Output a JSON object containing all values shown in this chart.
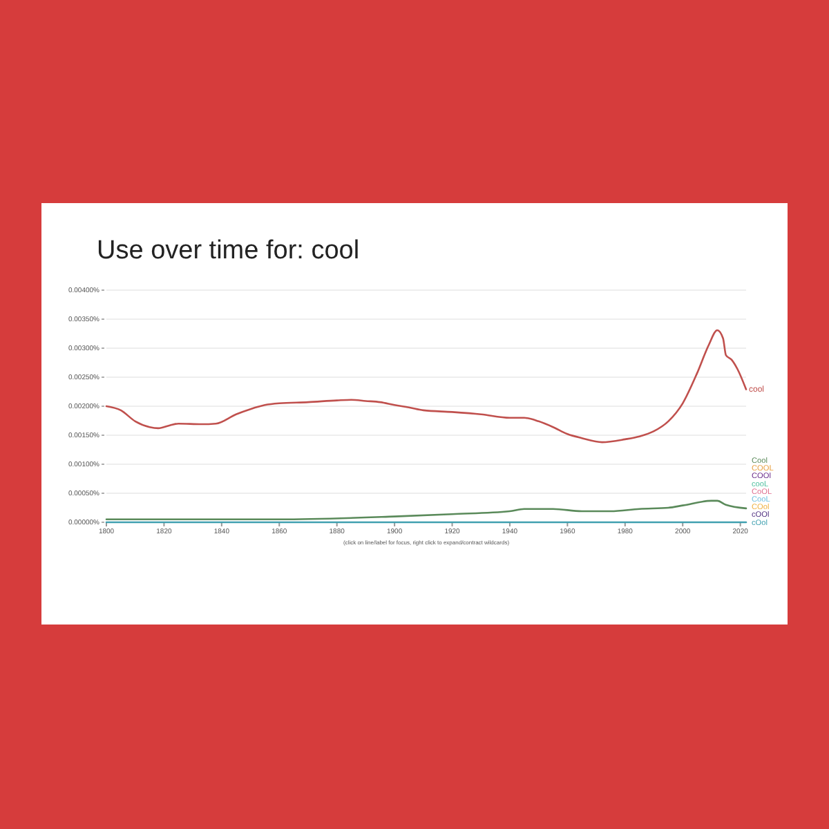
{
  "chart_data": {
    "type": "line",
    "title": "Use over time for: cool",
    "xlim": [
      1800,
      2022
    ],
    "xticks": [
      1800,
      1820,
      1840,
      1860,
      1880,
      1900,
      1920,
      1940,
      1960,
      1980,
      2000,
      2020
    ],
    "ylim": [
      0,
      0.004
    ],
    "yticks": [
      {
        "value": 0,
        "label": "0.00000%"
      },
      {
        "value": 0.0005,
        "label": "0.00050%"
      },
      {
        "value": 0.001,
        "label": "0.00100%"
      },
      {
        "value": 0.0015,
        "label": "0.00150%"
      },
      {
        "value": 0.002,
        "label": "0.00200%"
      },
      {
        "value": 0.0025,
        "label": "0.00250%"
      },
      {
        "value": 0.003,
        "label": "0.00300%"
      },
      {
        "value": 0.0035,
        "label": "0.00350%"
      },
      {
        "value": 0.004,
        "label": "0.00400%"
      }
    ],
    "grid": "y",
    "annotations": [
      "(click on line/label for focus, right click to expand/contract wildcards)"
    ],
    "series": [
      {
        "name": "cool",
        "color": "#c0504d",
        "x": [
          1800,
          1805,
          1810,
          1815,
          1818,
          1822,
          1825,
          1833,
          1838,
          1845,
          1850,
          1855,
          1860,
          1870,
          1880,
          1885,
          1890,
          1895,
          1900,
          1905,
          1910,
          1920,
          1930,
          1940,
          1945,
          1950,
          1955,
          1960,
          1965,
          1972,
          1980,
          1985,
          1990,
          1995,
          2000,
          2005,
          2009,
          2012,
          2014,
          2015,
          2017,
          2019,
          2022
        ],
        "values": [
          0.002,
          0.00193,
          0.00174,
          0.00164,
          0.00162,
          0.00167,
          0.0017,
          0.00169,
          0.0017,
          0.00186,
          0.00195,
          0.00202,
          0.00205,
          0.00207,
          0.0021,
          0.00211,
          0.00209,
          0.00207,
          0.00202,
          0.00198,
          0.00193,
          0.0019,
          0.00186,
          0.0018,
          0.0018,
          0.00174,
          0.00164,
          0.00152,
          0.00145,
          0.00138,
          0.00143,
          0.00148,
          0.00157,
          0.00174,
          0.00205,
          0.00257,
          0.00305,
          0.00331,
          0.00317,
          0.00288,
          0.0028,
          0.00264,
          0.00229
        ]
      },
      {
        "name": "Cool",
        "color": "#5a8a5a",
        "x": [
          1800,
          1820,
          1860,
          1900,
          1920,
          1940,
          1945,
          1955,
          1965,
          1975,
          1985,
          1995,
          2000,
          2010,
          2012,
          2015,
          2022
        ],
        "values": [
          5e-05,
          5e-05,
          5e-05,
          0.0001,
          0.00014,
          0.00019,
          0.00023,
          0.00023,
          0.00019,
          0.00019,
          0.00023,
          0.00025,
          0.00029,
          0.00037,
          0.00037,
          0.0003,
          0.00024
        ]
      },
      {
        "name": "COOL",
        "color": "#e8a040"
      },
      {
        "name": "COOl",
        "color": "#6a2a8a"
      },
      {
        "name": "cooL",
        "color": "#50c0a0"
      },
      {
        "name": "CoOL",
        "color": "#e07090"
      },
      {
        "name": "CooL",
        "color": "#70c0e0"
      },
      {
        "name": "COol",
        "color": "#f0b040"
      },
      {
        "name": "cOOl",
        "color": "#503080"
      },
      {
        "name": "cOol",
        "color": "#40a0b0",
        "x": [
          1800,
          2022
        ],
        "values": [
          0,
          0
        ]
      }
    ]
  }
}
